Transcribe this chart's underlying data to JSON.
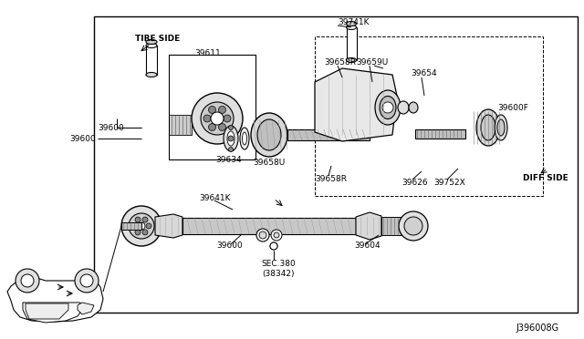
{
  "bg_color": "#ffffff",
  "diagram_id": "J396008G",
  "labels": {
    "tire_side": "TIRE SIDE",
    "diff_side": "DIFF SIDE",
    "39600_line": "39600",
    "39600_lower": "39600",
    "39611": "39611",
    "39634": "39634",
    "39658U": "39658U",
    "39641K": "39641K",
    "39741K": "39741K",
    "39658R_top": "39658R",
    "39659U": "39659U",
    "39654": "39654",
    "39658R_bot": "39658R",
    "39626": "39626",
    "39752X": "39752X",
    "39600F": "39600F",
    "39604": "39604",
    "sec380": "SEC.380\n(38342)"
  }
}
